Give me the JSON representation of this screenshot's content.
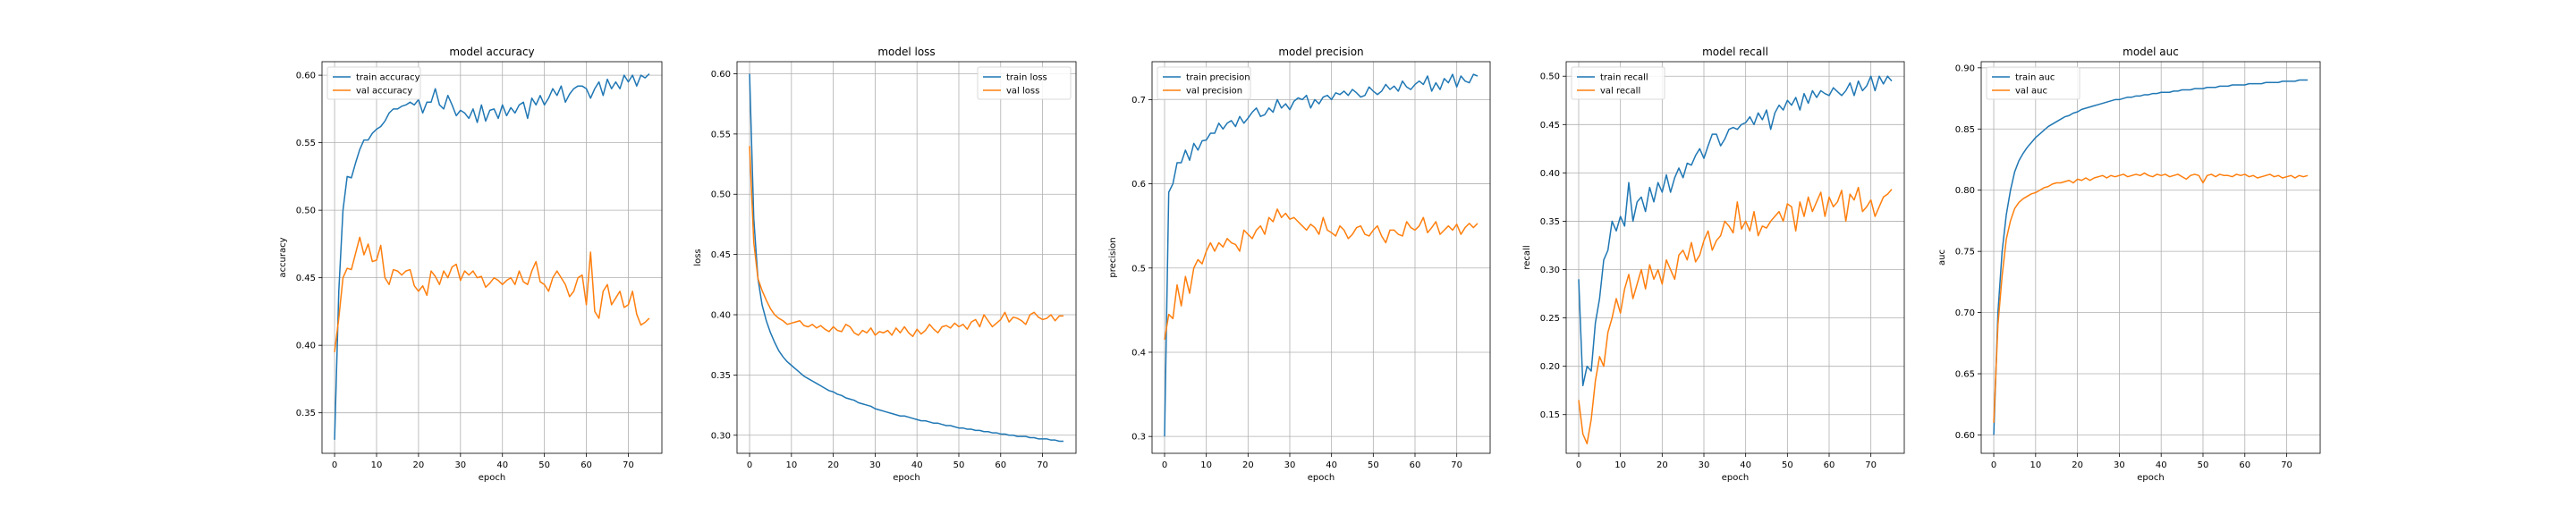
{
  "colors": {
    "train": "#1f77b4",
    "val": "#ff7f0e",
    "grid": "#b0b0b0",
    "axis": "#000000"
  },
  "chart_data": [
    {
      "type": "line",
      "title": "model accuracy",
      "xlabel": "epoch",
      "ylabel": "accuracy",
      "xlim": [
        -3,
        78
      ],
      "ylim": [
        0.32,
        0.61
      ],
      "xticks": [
        0,
        10,
        20,
        30,
        40,
        50,
        60,
        70
      ],
      "yticks": [
        0.35,
        0.4,
        0.45,
        0.5,
        0.55,
        0.6
      ],
      "ytick_labels": [
        "0.35",
        "0.40",
        "0.45",
        "0.50",
        "0.55",
        "0.60"
      ],
      "grid": true,
      "legend_position": "upper left",
      "series": [
        {
          "name": "train accuracy",
          "role": "train",
          "x_start": 0,
          "values": [
            0.33,
            0.44,
            0.5,
            0.525,
            0.524,
            0.535,
            0.545,
            0.552,
            0.552,
            0.557,
            0.56,
            0.562,
            0.566,
            0.572,
            0.575,
            0.575,
            0.577,
            0.578,
            0.58,
            0.578,
            0.582,
            0.572,
            0.58,
            0.58,
            0.59,
            0.578,
            0.575,
            0.585,
            0.578,
            0.57,
            0.574,
            0.572,
            0.568,
            0.575,
            0.565,
            0.578,
            0.566,
            0.574,
            0.575,
            0.568,
            0.578,
            0.57,
            0.576,
            0.572,
            0.578,
            0.58,
            0.568,
            0.583,
            0.578,
            0.585,
            0.578,
            0.583,
            0.59,
            0.585,
            0.592,
            0.58,
            0.586,
            0.59,
            0.592,
            0.592,
            0.59,
            0.583,
            0.59,
            0.595,
            0.585,
            0.597,
            0.59,
            0.595,
            0.59,
            0.6,
            0.595,
            0.6,
            0.592,
            0.6,
            0.598,
            0.601
          ]
        },
        {
          "name": "val accuracy",
          "role": "val",
          "x_start": 0,
          "values": [
            0.395,
            0.42,
            0.45,
            0.457,
            0.456,
            0.468,
            0.48,
            0.467,
            0.475,
            0.462,
            0.463,
            0.474,
            0.45,
            0.445,
            0.456,
            0.455,
            0.452,
            0.455,
            0.456,
            0.444,
            0.44,
            0.444,
            0.437,
            0.455,
            0.451,
            0.445,
            0.455,
            0.45,
            0.458,
            0.46,
            0.448,
            0.455,
            0.452,
            0.455,
            0.45,
            0.451,
            0.443,
            0.446,
            0.45,
            0.448,
            0.445,
            0.448,
            0.45,
            0.445,
            0.455,
            0.447,
            0.445,
            0.455,
            0.462,
            0.447,
            0.445,
            0.44,
            0.45,
            0.455,
            0.45,
            0.445,
            0.436,
            0.44,
            0.45,
            0.452,
            0.43,
            0.469,
            0.425,
            0.42,
            0.44,
            0.445,
            0.43,
            0.435,
            0.44,
            0.428,
            0.43,
            0.44,
            0.423,
            0.415,
            0.417,
            0.42
          ]
        }
      ]
    },
    {
      "type": "line",
      "title": "model loss",
      "xlabel": "epoch",
      "ylabel": "loss",
      "xlim": [
        -3,
        78
      ],
      "ylim": [
        0.285,
        0.61
      ],
      "xticks": [
        0,
        10,
        20,
        30,
        40,
        50,
        60,
        70
      ],
      "yticks": [
        0.3,
        0.35,
        0.4,
        0.45,
        0.5,
        0.55,
        0.6
      ],
      "ytick_labels": [
        "0.30",
        "0.35",
        "0.40",
        "0.45",
        "0.50",
        "0.55",
        "0.60"
      ],
      "grid": true,
      "legend_position": "upper right",
      "series": [
        {
          "name": "train loss",
          "role": "train",
          "x_start": 0,
          "values": [
            0.6,
            0.48,
            0.43,
            0.408,
            0.395,
            0.385,
            0.377,
            0.37,
            0.365,
            0.361,
            0.358,
            0.355,
            0.352,
            0.349,
            0.347,
            0.345,
            0.343,
            0.341,
            0.339,
            0.337,
            0.336,
            0.334,
            0.333,
            0.331,
            0.33,
            0.329,
            0.327,
            0.326,
            0.325,
            0.324,
            0.322,
            0.321,
            0.32,
            0.319,
            0.318,
            0.317,
            0.316,
            0.316,
            0.315,
            0.314,
            0.313,
            0.312,
            0.312,
            0.311,
            0.31,
            0.31,
            0.309,
            0.308,
            0.308,
            0.307,
            0.306,
            0.306,
            0.305,
            0.305,
            0.304,
            0.304,
            0.303,
            0.303,
            0.302,
            0.302,
            0.301,
            0.301,
            0.3,
            0.3,
            0.299,
            0.299,
            0.299,
            0.298,
            0.298,
            0.297,
            0.297,
            0.297,
            0.296,
            0.296,
            0.295,
            0.295
          ]
        },
        {
          "name": "val loss",
          "role": "val",
          "x_start": 0,
          "values": [
            0.54,
            0.46,
            0.43,
            0.42,
            0.412,
            0.405,
            0.4,
            0.397,
            0.395,
            0.392,
            0.393,
            0.394,
            0.395,
            0.391,
            0.39,
            0.392,
            0.389,
            0.391,
            0.388,
            0.386,
            0.39,
            0.387,
            0.386,
            0.392,
            0.39,
            0.385,
            0.383,
            0.387,
            0.385,
            0.389,
            0.383,
            0.386,
            0.385,
            0.387,
            0.383,
            0.389,
            0.385,
            0.39,
            0.385,
            0.382,
            0.388,
            0.384,
            0.387,
            0.392,
            0.388,
            0.385,
            0.39,
            0.391,
            0.389,
            0.393,
            0.39,
            0.392,
            0.388,
            0.394,
            0.396,
            0.39,
            0.4,
            0.395,
            0.39,
            0.393,
            0.396,
            0.402,
            0.394,
            0.398,
            0.397,
            0.395,
            0.392,
            0.4,
            0.402,
            0.398,
            0.396,
            0.397,
            0.4,
            0.395,
            0.399,
            0.399
          ]
        }
      ]
    },
    {
      "type": "line",
      "title": "model precision",
      "xlabel": "epoch",
      "ylabel": "precision",
      "xlim": [
        -3,
        78
      ],
      "ylim": [
        0.28,
        0.745
      ],
      "xticks": [
        0,
        10,
        20,
        30,
        40,
        50,
        60,
        70
      ],
      "yticks": [
        0.3,
        0.4,
        0.5,
        0.6,
        0.7
      ],
      "ytick_labels": [
        "0.3",
        "0.4",
        "0.5",
        "0.6",
        "0.7"
      ],
      "grid": true,
      "legend_position": "upper left",
      "series": [
        {
          "name": "train precision",
          "role": "train",
          "x_start": 0,
          "values": [
            0.3,
            0.59,
            0.6,
            0.625,
            0.625,
            0.64,
            0.628,
            0.648,
            0.64,
            0.651,
            0.652,
            0.66,
            0.66,
            0.672,
            0.665,
            0.672,
            0.675,
            0.668,
            0.68,
            0.672,
            0.678,
            0.685,
            0.69,
            0.68,
            0.682,
            0.69,
            0.685,
            0.7,
            0.69,
            0.695,
            0.688,
            0.698,
            0.702,
            0.7,
            0.705,
            0.69,
            0.7,
            0.695,
            0.703,
            0.705,
            0.7,
            0.708,
            0.706,
            0.71,
            0.705,
            0.712,
            0.708,
            0.703,
            0.705,
            0.715,
            0.71,
            0.706,
            0.71,
            0.718,
            0.712,
            0.716,
            0.71,
            0.722,
            0.715,
            0.712,
            0.718,
            0.722,
            0.718,
            0.728,
            0.71,
            0.72,
            0.712,
            0.725,
            0.72,
            0.73,
            0.715,
            0.728,
            0.722,
            0.72,
            0.73,
            0.728
          ]
        },
        {
          "name": "val precision",
          "role": "val",
          "x_start": 0,
          "values": [
            0.415,
            0.445,
            0.44,
            0.48,
            0.455,
            0.49,
            0.47,
            0.5,
            0.51,
            0.505,
            0.52,
            0.53,
            0.52,
            0.53,
            0.525,
            0.535,
            0.53,
            0.528,
            0.52,
            0.545,
            0.54,
            0.535,
            0.545,
            0.55,
            0.54,
            0.56,
            0.555,
            0.57,
            0.56,
            0.565,
            0.558,
            0.56,
            0.555,
            0.55,
            0.545,
            0.552,
            0.548,
            0.54,
            0.56,
            0.545,
            0.542,
            0.538,
            0.55,
            0.545,
            0.535,
            0.54,
            0.548,
            0.55,
            0.54,
            0.538,
            0.545,
            0.55,
            0.538,
            0.53,
            0.545,
            0.545,
            0.54,
            0.538,
            0.555,
            0.548,
            0.545,
            0.55,
            0.56,
            0.542,
            0.548,
            0.555,
            0.54,
            0.545,
            0.55,
            0.545,
            0.552,
            0.54,
            0.548,
            0.553,
            0.548,
            0.553
          ]
        }
      ]
    },
    {
      "type": "line",
      "title": "model recall",
      "xlabel": "epoch",
      "ylabel": "recall",
      "xlim": [
        -3,
        78
      ],
      "ylim": [
        0.11,
        0.515
      ],
      "xticks": [
        0,
        10,
        20,
        30,
        40,
        50,
        60,
        70
      ],
      "yticks": [
        0.15,
        0.2,
        0.25,
        0.3,
        0.35,
        0.4,
        0.45,
        0.5
      ],
      "ytick_labels": [
        "0.15",
        "0.20",
        "0.25",
        "0.30",
        "0.35",
        "0.40",
        "0.45",
        "0.50"
      ],
      "grid": true,
      "legend_position": "upper left",
      "series": [
        {
          "name": "train recall",
          "role": "train",
          "x_start": 0,
          "values": [
            0.29,
            0.18,
            0.2,
            0.195,
            0.245,
            0.27,
            0.31,
            0.32,
            0.35,
            0.34,
            0.355,
            0.345,
            0.39,
            0.35,
            0.37,
            0.375,
            0.36,
            0.385,
            0.37,
            0.39,
            0.38,
            0.398,
            0.38,
            0.395,
            0.405,
            0.395,
            0.41,
            0.408,
            0.418,
            0.425,
            0.415,
            0.428,
            0.44,
            0.44,
            0.428,
            0.435,
            0.445,
            0.447,
            0.445,
            0.45,
            0.452,
            0.458,
            0.45,
            0.462,
            0.455,
            0.465,
            0.445,
            0.462,
            0.47,
            0.465,
            0.475,
            0.47,
            0.478,
            0.465,
            0.482,
            0.472,
            0.485,
            0.478,
            0.485,
            0.482,
            0.48,
            0.488,
            0.484,
            0.48,
            0.485,
            0.493,
            0.48,
            0.495,
            0.485,
            0.49,
            0.5,
            0.485,
            0.5,
            0.492,
            0.5,
            0.495
          ]
        },
        {
          "name": "val recall",
          "role": "val",
          "x_start": 0,
          "values": [
            0.165,
            0.13,
            0.12,
            0.145,
            0.185,
            0.21,
            0.2,
            0.235,
            0.25,
            0.27,
            0.255,
            0.28,
            0.295,
            0.27,
            0.285,
            0.3,
            0.28,
            0.305,
            0.29,
            0.3,
            0.285,
            0.31,
            0.3,
            0.29,
            0.315,
            0.32,
            0.31,
            0.328,
            0.308,
            0.315,
            0.33,
            0.34,
            0.32,
            0.33,
            0.335,
            0.35,
            0.345,
            0.338,
            0.37,
            0.342,
            0.35,
            0.34,
            0.36,
            0.335,
            0.345,
            0.343,
            0.35,
            0.355,
            0.36,
            0.35,
            0.368,
            0.365,
            0.34,
            0.37,
            0.355,
            0.375,
            0.36,
            0.37,
            0.38,
            0.355,
            0.375,
            0.365,
            0.37,
            0.382,
            0.35,
            0.378,
            0.372,
            0.385,
            0.36,
            0.365,
            0.372,
            0.355,
            0.365,
            0.375,
            0.378,
            0.383
          ]
        }
      ]
    },
    {
      "type": "line",
      "title": "model auc",
      "xlabel": "epoch",
      "ylabel": "auc",
      "xlim": [
        -3,
        78
      ],
      "ylim": [
        0.585,
        0.905
      ],
      "xticks": [
        0,
        10,
        20,
        30,
        40,
        50,
        60,
        70
      ],
      "yticks": [
        0.6,
        0.65,
        0.7,
        0.75,
        0.8,
        0.85,
        0.9
      ],
      "ytick_labels": [
        "0.60",
        "0.65",
        "0.70",
        "0.75",
        "0.80",
        "0.85",
        "0.90"
      ],
      "grid": true,
      "legend_position": "upper left",
      "series": [
        {
          "name": "train auc",
          "role": "train",
          "x_start": 0,
          "values": [
            0.6,
            0.7,
            0.75,
            0.78,
            0.8,
            0.815,
            0.824,
            0.83,
            0.835,
            0.839,
            0.843,
            0.846,
            0.849,
            0.852,
            0.854,
            0.856,
            0.858,
            0.86,
            0.861,
            0.863,
            0.864,
            0.866,
            0.867,
            0.868,
            0.869,
            0.87,
            0.871,
            0.872,
            0.873,
            0.874,
            0.874,
            0.875,
            0.876,
            0.876,
            0.877,
            0.877,
            0.878,
            0.878,
            0.879,
            0.879,
            0.88,
            0.88,
            0.88,
            0.881,
            0.881,
            0.882,
            0.882,
            0.882,
            0.883,
            0.883,
            0.883,
            0.884,
            0.884,
            0.884,
            0.885,
            0.885,
            0.885,
            0.886,
            0.886,
            0.886,
            0.886,
            0.887,
            0.887,
            0.887,
            0.887,
            0.888,
            0.888,
            0.888,
            0.888,
            0.889,
            0.889,
            0.889,
            0.889,
            0.89,
            0.89,
            0.89
          ]
        },
        {
          "name": "val auc",
          "role": "val",
          "x_start": 0,
          "values": [
            0.61,
            0.69,
            0.73,
            0.76,
            0.775,
            0.785,
            0.79,
            0.793,
            0.795,
            0.797,
            0.798,
            0.8,
            0.802,
            0.803,
            0.805,
            0.806,
            0.806,
            0.807,
            0.808,
            0.806,
            0.809,
            0.808,
            0.81,
            0.808,
            0.81,
            0.811,
            0.812,
            0.81,
            0.812,
            0.811,
            0.812,
            0.813,
            0.811,
            0.812,
            0.813,
            0.812,
            0.814,
            0.812,
            0.811,
            0.813,
            0.812,
            0.813,
            0.811,
            0.812,
            0.813,
            0.811,
            0.809,
            0.812,
            0.813,
            0.812,
            0.806,
            0.812,
            0.813,
            0.811,
            0.813,
            0.812,
            0.812,
            0.811,
            0.813,
            0.812,
            0.813,
            0.811,
            0.812,
            0.81,
            0.811,
            0.812,
            0.813,
            0.811,
            0.812,
            0.81,
            0.811,
            0.812,
            0.81,
            0.812,
            0.811,
            0.812
          ]
        }
      ]
    }
  ]
}
